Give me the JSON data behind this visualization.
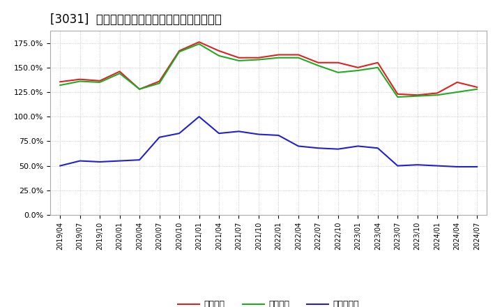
{
  "title": "[3031]  流動比率、当座比率、現預金比率の推移",
  "background_color": "#ffffff",
  "plot_bg_color": "#ffffff",
  "grid_color": "#bbbbbb",
  "dates": [
    "2019/04",
    "2019/07",
    "2019/10",
    "2020/01",
    "2020/04",
    "2020/07",
    "2020/10",
    "2021/01",
    "2021/04",
    "2021/07",
    "2021/10",
    "2022/01",
    "2022/04",
    "2022/07",
    "2022/10",
    "2023/01",
    "2023/04",
    "2023/07",
    "2023/10",
    "2024/01",
    "2024/04",
    "2024/07"
  ],
  "ryudo": [
    1.355,
    1.38,
    1.365,
    1.46,
    1.28,
    1.36,
    1.67,
    1.76,
    1.67,
    1.6,
    1.6,
    1.63,
    1.63,
    1.55,
    1.55,
    1.5,
    1.55,
    1.23,
    1.22,
    1.24,
    1.35,
    1.3
  ],
  "toza": [
    1.32,
    1.36,
    1.35,
    1.44,
    1.28,
    1.34,
    1.66,
    1.74,
    1.62,
    1.57,
    1.58,
    1.6,
    1.6,
    1.52,
    1.45,
    1.47,
    1.5,
    1.2,
    1.21,
    1.22,
    1.25,
    1.28
  ],
  "genkin": [
    0.5,
    0.55,
    0.54,
    0.55,
    0.56,
    0.79,
    0.83,
    1.0,
    0.83,
    0.85,
    0.82,
    0.81,
    0.7,
    0.68,
    0.67,
    0.7,
    0.68,
    0.5,
    0.51,
    0.5,
    0.49,
    0.49
  ],
  "ryudo_color": "#dd2222",
  "toza_color": "#22aa22",
  "genkin_color": "#2222cc",
  "legend_ryudo": "流動比率",
  "legend_toza": "当座比率",
  "legend_genkin": "現預金比率",
  "title_fontsize": 12,
  "legend_fontsize": 9,
  "tick_fontsize": 8,
  "linewidth": 1.5,
  "ylim_max": 1.875,
  "yticks": [
    0.0,
    0.25,
    0.5,
    0.75,
    1.0,
    1.25,
    1.5,
    1.75
  ],
  "ytick_labels": [
    "0.0%",
    "25.0%",
    "50.0%",
    "75.0%",
    "100.0%",
    "125.0%",
    "150.0%",
    "175.0%"
  ]
}
